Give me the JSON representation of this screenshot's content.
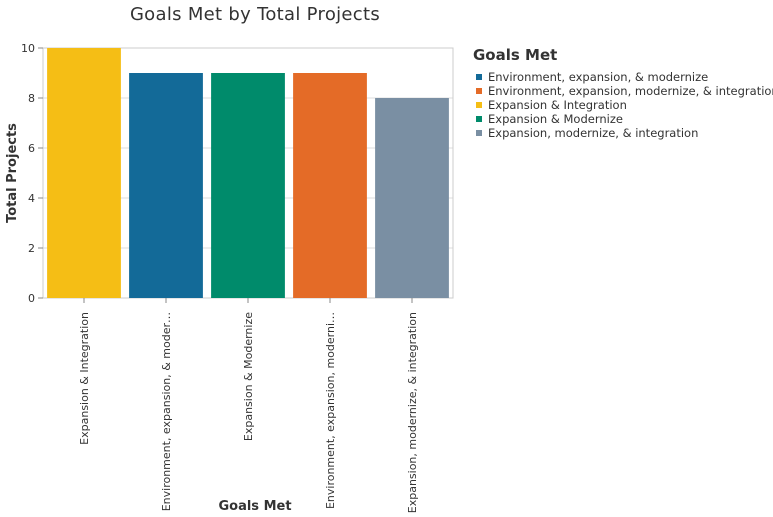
{
  "chart_data": {
    "type": "bar",
    "title": "Goals Met by Total Projects",
    "xlabel": "Goals Met",
    "ylabel": "Total Projects",
    "ylim": [
      0,
      10
    ],
    "yticks": [
      0,
      2,
      4,
      6,
      8,
      10
    ],
    "grid": true,
    "categories": [
      "Expansion & Integration",
      "Environment, expansion, & moder…",
      "Expansion & Modernize",
      "Environment, expansion, moderni…",
      "Expansion, modernize, & integration"
    ],
    "values": [
      10,
      9,
      9,
      9,
      8
    ],
    "bar_colors": [
      "#f5be15",
      "#136a98",
      "#008b6b",
      "#e46b27",
      "#7a8fa3"
    ],
    "legend": {
      "title": "Goals Met",
      "placement": "right",
      "items": [
        {
          "label": "Environment, expansion, & modernize",
          "color": "#136a98"
        },
        {
          "label": "Environment, expansion, modernize, & integration",
          "color": "#e46b27"
        },
        {
          "label": "Expansion & Integration",
          "color": "#f5be15"
        },
        {
          "label": "Expansion & Modernize",
          "color": "#008b6b"
        },
        {
          "label": "Expansion, modernize, & integration",
          "color": "#7a8fa3"
        }
      ]
    }
  }
}
